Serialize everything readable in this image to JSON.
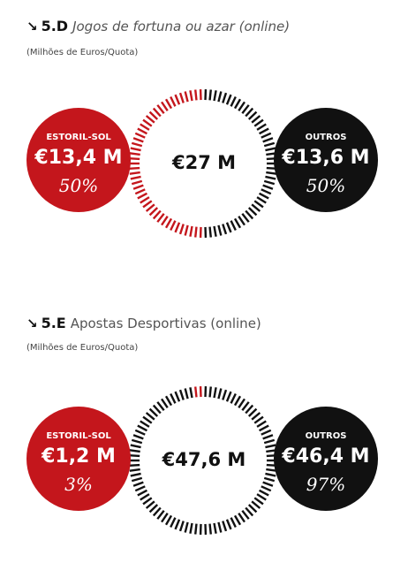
{
  "colors": {
    "red": "#c4161c",
    "black": "#111111"
  },
  "chart_data": [
    {
      "type": "pie",
      "code": "5.D",
      "title": "Jogos de fortuna ou azar (online)",
      "subtitle": "(Milhões de Euros/Quota)",
      "total_label": "€27 M",
      "slices": [
        {
          "name": "ESTORIL-SOL",
          "value_label": "€13,4 M",
          "value": 13.4,
          "share_label": "50%",
          "share": 50
        },
        {
          "name": "OUTROS",
          "value_label": "€13,6 M",
          "value": 13.6,
          "share_label": "50%",
          "share": 50
        }
      ]
    },
    {
      "type": "pie",
      "code": "5.E",
      "title": "Apostas Desportivas (online)",
      "subtitle": "(Milhões de Euros/Quota)",
      "total_label": "€47,6 M",
      "slices": [
        {
          "name": "ESTORIL-SOL",
          "value_label": "€1,2 M",
          "value": 1.2,
          "share_label": "3%",
          "share": 3
        },
        {
          "name": "OUTROS",
          "value_label": "€46,4 M",
          "value": 46.4,
          "share_label": "97%",
          "share": 97
        }
      ]
    }
  ]
}
